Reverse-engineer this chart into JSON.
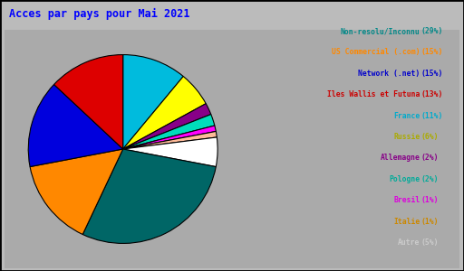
{
  "title": "Acces par pays pour Mai 2021",
  "title_color": "#0000ff",
  "background_color": "#bbbbbb",
  "box_background": "#aaaaaa",
  "labels": [
    "Non-resolu/Inconnu",
    "US Commercial (.com)",
    "Network (.net)",
    "Iles Wallis et Futuna",
    "France",
    "Russie",
    "Allemagne",
    "Pologne",
    "Bresil",
    "Italie",
    "Autre"
  ],
  "pct_labels": [
    "(29%)",
    "(15%)",
    "(15%)",
    "(13%)",
    "(11%)",
    "(6%)",
    "(2%)",
    "(2%)",
    "(1%)",
    "(1%)",
    "(5%)"
  ],
  "percentages": [
    29,
    15,
    15,
    13,
    11,
    6,
    2,
    2,
    1,
    1,
    5
  ],
  "slice_colors": [
    "#006666",
    "#ff8800",
    "#0000dd",
    "#dd0000",
    "#00bbdd",
    "#ffff00",
    "#880088",
    "#00ddbb",
    "#ff00ff",
    "#ffbb99",
    "#ffffff"
  ],
  "legend_label_colors": [
    "#008888",
    "#ff8800",
    "#0000cc",
    "#cc0000",
    "#00aacc",
    "#aaaa00",
    "#880088",
    "#00aa99",
    "#dd00dd",
    "#cc8800",
    "#cccccc"
  ],
  "legend_pct_colors": [
    "#008888",
    "#ff8800",
    "#0000cc",
    "#cc0000",
    "#00aacc",
    "#aaaa00",
    "#880088",
    "#00aa99",
    "#dd00dd",
    "#cc8800",
    "#cccccc"
  ]
}
